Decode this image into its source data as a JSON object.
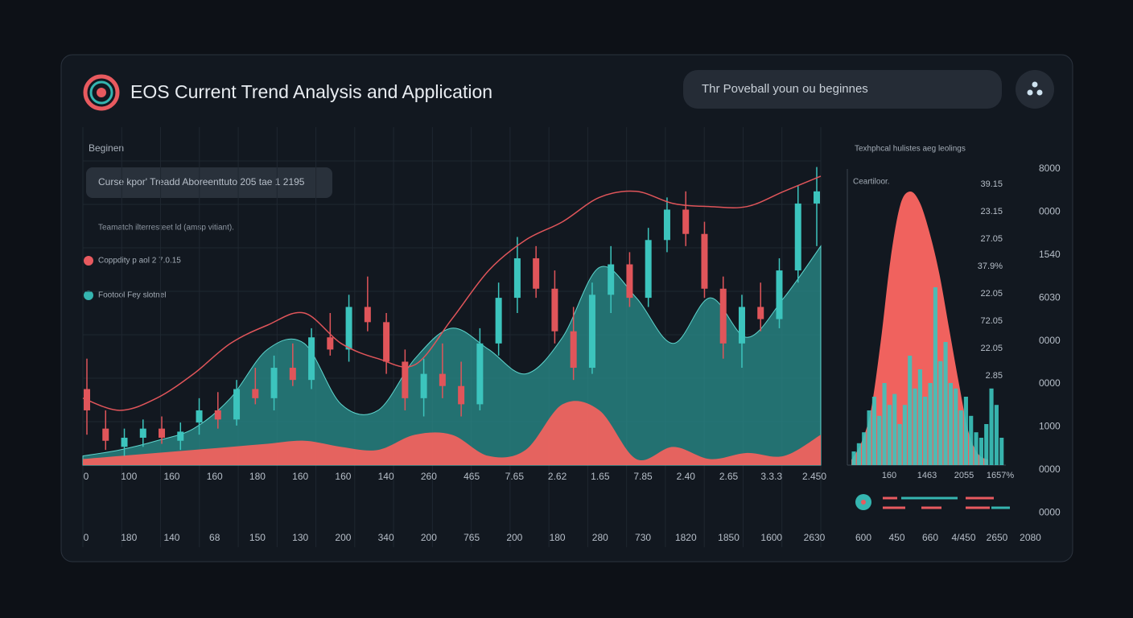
{
  "header": {
    "title": "EOS Current Trend Analysis and Application",
    "search_placeholder": "Thr Poveball youn ou beginnes"
  },
  "sidebar": {
    "heading": "Beginen",
    "badge": "Curse kpor' Treadd Aboreenttuto 205 tae 1 2195",
    "note": "Teamatch ilterresteet ld (amsp vitiant).",
    "legend": [
      {
        "name": "Coppdity p aol 2 7.0.15",
        "color": "#e85a5f"
      },
      {
        "name": "Footool Fey slotnel",
        "color": "#35b5b0"
      }
    ]
  },
  "chart_data": [
    {
      "type": "candlestick",
      "ylim": [
        0,
        100
      ],
      "up_color": "#3cc4bd",
      "down_color": "#e0555a",
      "candles": [
        [
          25,
          35,
          10,
          18
        ],
        [
          12,
          18,
          5,
          8
        ],
        [
          6,
          12,
          3,
          9
        ],
        [
          9,
          15,
          6,
          12
        ],
        [
          12,
          16,
          7,
          9
        ],
        [
          8,
          14,
          5,
          11
        ],
        [
          14,
          22,
          10,
          18
        ],
        [
          18,
          24,
          12,
          15
        ],
        [
          15,
          28,
          13,
          25
        ],
        [
          25,
          32,
          20,
          22
        ],
        [
          22,
          36,
          18,
          32
        ],
        [
          32,
          40,
          26,
          28
        ],
        [
          28,
          45,
          25,
          42
        ],
        [
          42,
          50,
          36,
          38
        ],
        [
          38,
          56,
          34,
          52
        ],
        [
          52,
          62,
          44,
          47
        ],
        [
          47,
          50,
          30,
          34
        ],
        [
          34,
          38,
          18,
          22
        ],
        [
          22,
          35,
          16,
          30
        ],
        [
          30,
          40,
          22,
          26
        ],
        [
          26,
          34,
          16,
          20
        ],
        [
          20,
          45,
          18,
          40
        ],
        [
          40,
          60,
          36,
          55
        ],
        [
          55,
          75,
          50,
          68
        ],
        [
          68,
          72,
          55,
          58
        ],
        [
          58,
          64,
          40,
          44
        ],
        [
          44,
          52,
          28,
          32
        ],
        [
          32,
          60,
          30,
          56
        ],
        [
          56,
          72,
          50,
          66
        ],
        [
          66,
          70,
          52,
          55
        ],
        [
          55,
          78,
          52,
          74
        ],
        [
          74,
          88,
          70,
          84
        ],
        [
          84,
          90,
          72,
          76
        ],
        [
          76,
          80,
          55,
          58
        ],
        [
          58,
          62,
          35,
          40
        ],
        [
          40,
          56,
          32,
          52
        ],
        [
          52,
          60,
          44,
          48
        ],
        [
          48,
          68,
          45,
          64
        ],
        [
          64,
          92,
          60,
          86
        ],
        [
          86,
          98,
          72,
          90
        ]
      ],
      "areas": [
        {
          "color": "#2a8f8c",
          "values": [
            3,
            5,
            8,
            12,
            22,
            38,
            40,
            20,
            18,
            35,
            45,
            38,
            30,
            42,
            65,
            55,
            40,
            55,
            42,
            55,
            72
          ]
        },
        {
          "color": "#f0625e",
          "values": [
            2,
            3,
            4,
            5,
            6,
            7,
            8,
            6,
            5,
            10,
            10,
            3,
            5,
            20,
            18,
            2,
            6,
            2,
            4,
            3,
            10
          ]
        }
      ],
      "line": {
        "color": "#e0555a",
        "values": [
          22,
          18,
          22,
          30,
          40,
          46,
          50,
          40,
          35,
          33,
          48,
          64,
          74,
          80,
          88,
          90,
          86,
          85,
          85,
          90,
          95
        ]
      },
      "x_labels": [
        "0",
        "100",
        "160",
        "160",
        "180",
        "160",
        "160",
        "140",
        "260",
        "465",
        "7.65",
        "2.62",
        "1.65",
        "7.85",
        "2.40",
        "2.65",
        "3.3.3",
        "2.450"
      ],
      "x_labels_2": [
        "0",
        "180",
        "140",
        "68",
        "150",
        "130",
        "200",
        "340",
        "200",
        "765",
        "200",
        "180",
        "280",
        "730",
        "1820",
        "1850",
        "1600",
        "2630"
      ]
    },
    {
      "type": "histogram",
      "title": "Texhphcal hulistes aeg leolings",
      "subtitle": "Ceartiloor.",
      "ylim": [
        0,
        100
      ],
      "curve": {
        "color": "#f0625e",
        "values": [
          2,
          8,
          20,
          45,
          75,
          95,
          100,
          96,
          85,
          70,
          50,
          30,
          12,
          4,
          2
        ]
      },
      "bars": {
        "color": "#3cc4bd",
        "values": [
          5,
          8,
          12,
          20,
          25,
          18,
          30,
          22,
          26,
          15,
          22,
          40,
          28,
          35,
          25,
          30,
          65,
          38,
          45,
          30,
          28,
          20,
          25,
          18,
          12,
          10,
          15,
          28,
          22,
          10
        ]
      },
      "annotations": [
        "39.15",
        "23.15",
        "27.05",
        "37.9%",
        "22.05",
        "72.05",
        "22.05",
        "2.85"
      ],
      "x_labels": [
        "160",
        "1463",
        "2055",
        "1657%"
      ],
      "x_labels_2": [
        "600",
        "450",
        "660",
        "4/450",
        "2650",
        "2080"
      ],
      "y_labels": [
        "8000",
        "0000",
        "1540",
        "6030",
        "0000",
        "0000",
        "1000",
        "0000",
        "0000"
      ]
    }
  ]
}
